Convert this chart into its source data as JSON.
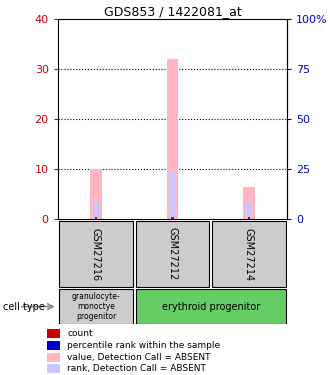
{
  "title": "GDS853 / 1422081_at",
  "samples": [
    "GSM27216",
    "GSM27212",
    "GSM27214"
  ],
  "bar_absent_value": [
    10.0,
    32.0,
    6.5
  ],
  "bar_absent_rank": [
    3.5,
    9.5,
    3.5
  ],
  "count_values": [
    0.5,
    0.5,
    0.5
  ],
  "ylim_left": [
    0,
    40
  ],
  "ylim_right": [
    0,
    100
  ],
  "yticks_left": [
    0,
    10,
    20,
    30,
    40
  ],
  "yticks_right": [
    0,
    25,
    50,
    75,
    100
  ],
  "yticklabels_right": [
    "0",
    "25",
    "50",
    "75",
    "100%"
  ],
  "color_absent_value": "#ffb6c1",
  "color_absent_rank": "#c8c8ff",
  "color_count": "#cc0000",
  "color_rank": "#0000cc",
  "cell_type_labels": [
    "granulocyte-\nmonoctye\nprogenitor",
    "erythroid progenitor"
  ],
  "cell_type_colors": [
    "#cccccc",
    "#66cc66"
  ],
  "cell_type_spans": [
    1,
    2
  ],
  "sample_box_color": "#cccccc",
  "bg_color": "#ffffff",
  "label_color_left": "#cc0000",
  "label_color_right": "#0000cc",
  "legend_items": [
    [
      "#cc0000",
      "count"
    ],
    [
      "#0000cc",
      "percentile rank within the sample"
    ],
    [
      "#ffb6c1",
      "value, Detection Call = ABSENT"
    ],
    [
      "#c8c8ff",
      "rank, Detection Call = ABSENT"
    ]
  ]
}
